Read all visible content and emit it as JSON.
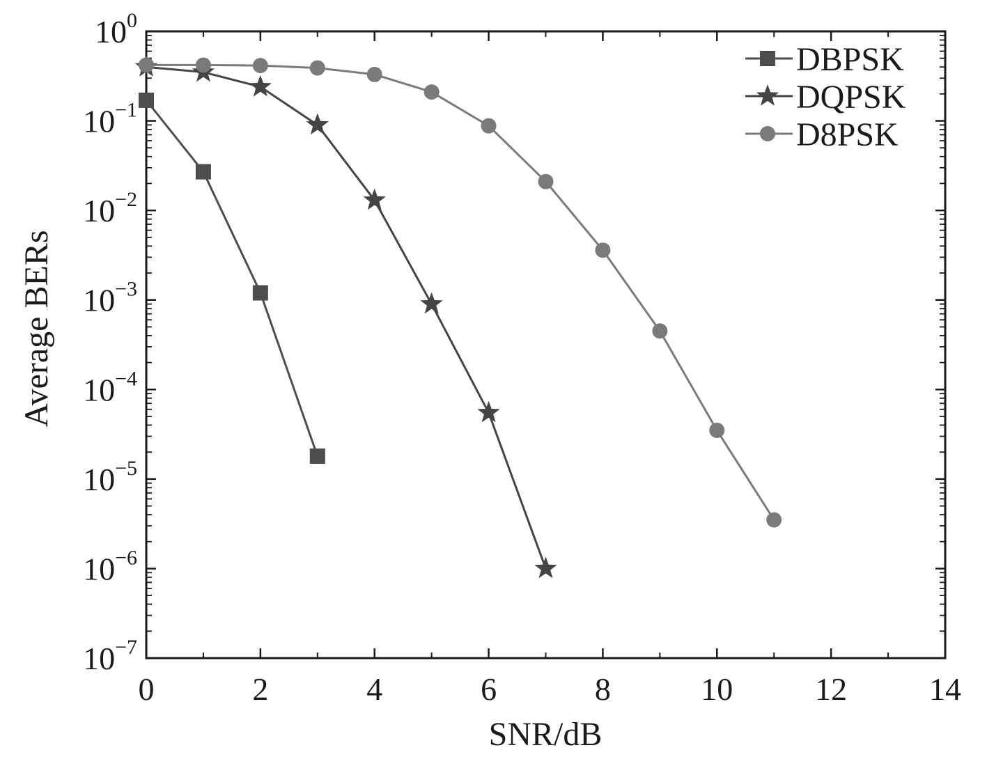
{
  "chart_data": {
    "type": "line",
    "xlabel": "SNR/dB",
    "ylabel": "Average BERs",
    "x_scale": "linear",
    "y_scale": "log",
    "xlim": [
      0,
      14
    ],
    "ylim": [
      1e-07,
      1
    ],
    "x_ticks": [
      "0",
      "2",
      "4",
      "6",
      "8",
      "10",
      "12",
      "14"
    ],
    "y_ticks": [
      {
        "base": "10",
        "exp": "0"
      },
      {
        "base": "10",
        "exp": "−1"
      },
      {
        "base": "10",
        "exp": "−2"
      },
      {
        "base": "10",
        "exp": "−3"
      },
      {
        "base": "10",
        "exp": "−4"
      },
      {
        "base": "10",
        "exp": "−5"
      },
      {
        "base": "10",
        "exp": "−6"
      },
      {
        "base": "10",
        "exp": "−7"
      }
    ],
    "grid": false,
    "legend_position": "top-right",
    "series": [
      {
        "name": "DBPSK",
        "marker": "square",
        "color": "#4d4d4d",
        "x": [
          0,
          1,
          2,
          3
        ],
        "y": [
          0.17,
          0.027,
          0.0012,
          1.8e-05
        ]
      },
      {
        "name": "DQPSK",
        "marker": "star",
        "color": "#444444",
        "x": [
          0,
          1,
          2,
          3,
          4,
          5,
          6,
          7
        ],
        "y": [
          0.4,
          0.35,
          0.24,
          0.09,
          0.013,
          0.0009,
          5.5e-05,
          1e-06
        ]
      },
      {
        "name": "D8PSK",
        "marker": "circle",
        "color": "#7a7a7a",
        "x": [
          0,
          1,
          2,
          3,
          4,
          5,
          6,
          7,
          8,
          9,
          10,
          11
        ],
        "y": [
          0.42,
          0.42,
          0.415,
          0.39,
          0.33,
          0.21,
          0.088,
          0.021,
          0.0036,
          0.00045,
          3.5e-05,
          3.5e-06
        ]
      }
    ]
  }
}
